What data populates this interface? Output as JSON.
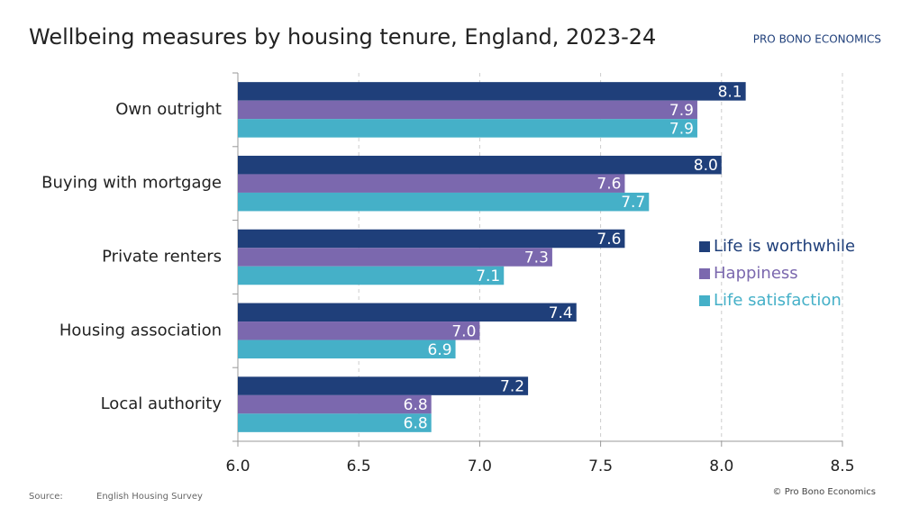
{
  "chart_data": {
    "type": "barh",
    "title": "Wellbeing measures by housing tenure, England, 2023-24",
    "logo": "PRO BONO ECONOMICS",
    "source_label": "Source:",
    "source": "English Housing Survey",
    "copyright": "© Pro Bono Economics",
    "categories": [
      "Own outright",
      "Buying with mortgage",
      "Private renters",
      "Housing association",
      "Local authority"
    ],
    "series": [
      {
        "name": "Life is worthwhile",
        "color": "#1f3f7a",
        "values": [
          8.1,
          8.0,
          7.6,
          7.4,
          7.2
        ],
        "value_labels": [
          "8.1",
          "8.0",
          "7.6",
          "7.4",
          "7.2"
        ]
      },
      {
        "name": "Happiness",
        "color": "#7b68ae",
        "values": [
          7.9,
          7.6,
          7.3,
          7.0,
          6.8
        ],
        "value_labels": [
          "7.9",
          "7.6",
          "7.3",
          "7.0",
          "6.8"
        ]
      },
      {
        "name": "Life satisfaction",
        "color": "#45b0c8",
        "values": [
          7.9,
          7.7,
          7.1,
          6.9,
          6.8
        ],
        "value_labels": [
          "7.9",
          "7.7",
          "7.1",
          "6.9",
          "6.8"
        ]
      }
    ],
    "xlim": [
      6,
      8.5
    ],
    "xticks": [
      {
        "value": 6,
        "label": "6.0"
      },
      6.5,
      {
        "value": 7,
        "label": "7.0"
      },
      7.5,
      {
        "value": 8,
        "label": "8.0"
      },
      8.5
    ],
    "grid": true,
    "legend": "right"
  }
}
